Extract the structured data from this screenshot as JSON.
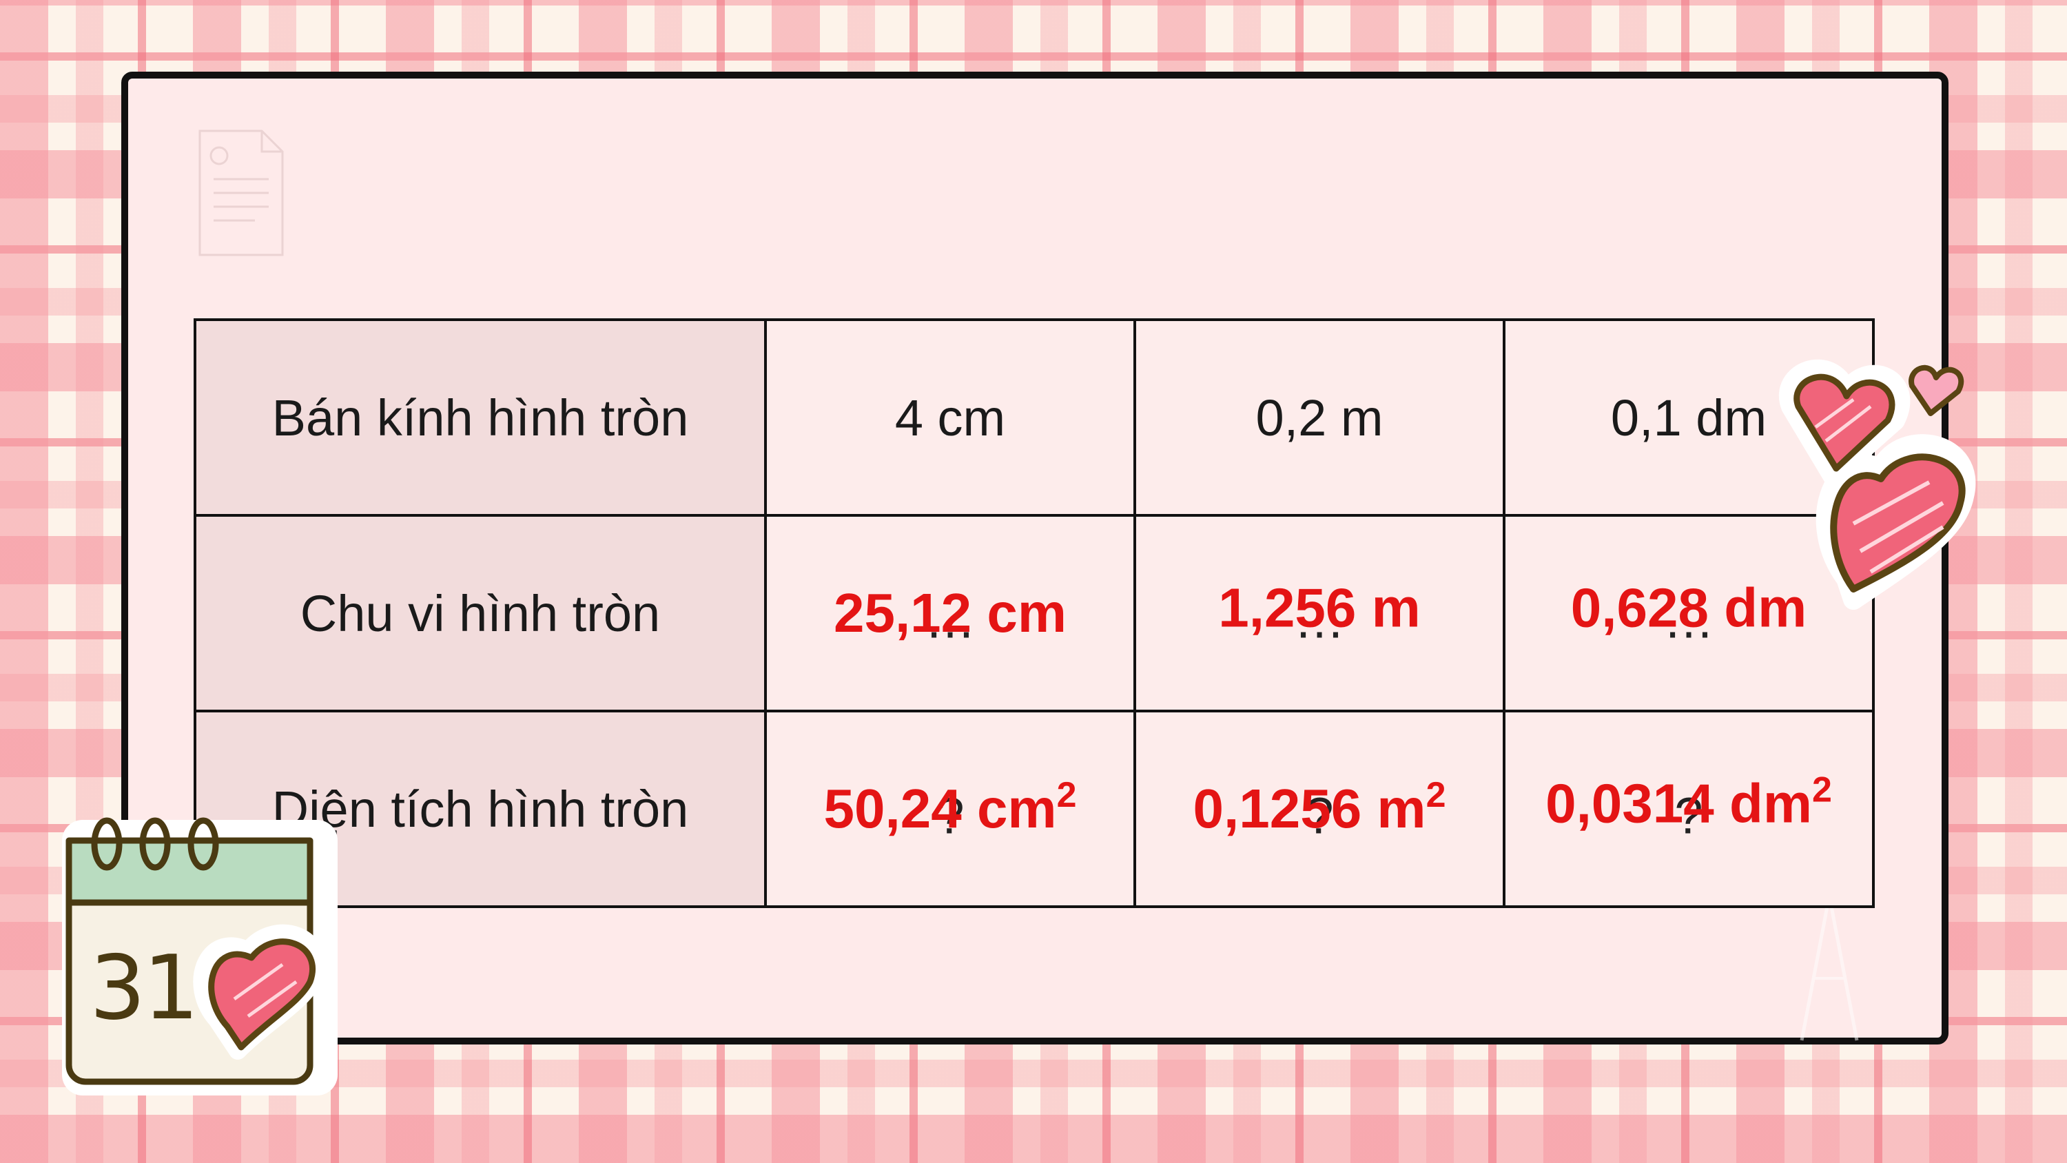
{
  "table": {
    "rows": [
      {
        "header": "Bán kính hình tròn",
        "cells": [
          {
            "text": "4 cm"
          },
          {
            "text": "0,2 m"
          },
          {
            "text": "0,1 dm"
          }
        ]
      },
      {
        "header": "Chu vi hình tròn",
        "cells": [
          {
            "placeholder": "…",
            "answer": "25,12 cm"
          },
          {
            "placeholder": "…",
            "answer": "1,256 m"
          },
          {
            "placeholder": "…",
            "answer": "0,628 dm"
          }
        ]
      },
      {
        "header": "Diện tích hình tròn",
        "cells": [
          {
            "placeholder": "?",
            "answer": "50,24 cm",
            "answer_exp": "2"
          },
          {
            "placeholder": "?",
            "answer": "0,1256 m",
            "answer_exp": "2"
          },
          {
            "placeholder": "?",
            "answer": "0,0314 dm",
            "answer_exp": "2"
          }
        ]
      }
    ]
  },
  "calendar": {
    "day": "31"
  },
  "colors": {
    "answer": "#e41414",
    "header_cell": "#f2dcdc",
    "board": "#feeaea",
    "heart": "#f0647a"
  },
  "decorations": [
    "heart-icon",
    "calendar-icon",
    "document-icon",
    "compass-icon"
  ]
}
